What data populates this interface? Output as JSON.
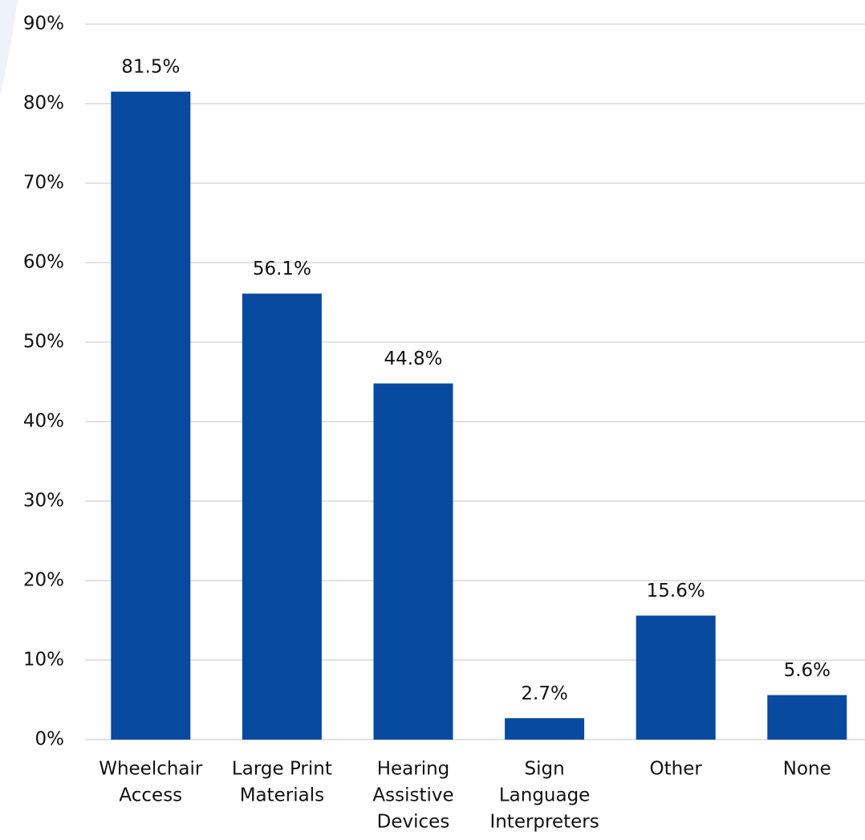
{
  "chart_data": {
    "type": "bar",
    "categories": [
      [
        "Wheelchair",
        "Access"
      ],
      [
        "Large Print",
        "Materials"
      ],
      [
        "Hearing",
        "Assistive",
        "Devices"
      ],
      [
        "Sign",
        "Language",
        "Interpreters"
      ],
      [
        "Other"
      ],
      [
        "None"
      ]
    ],
    "values": [
      81.5,
      56.1,
      44.8,
      2.7,
      15.6,
      5.6
    ],
    "value_labels": [
      "81.5%",
      "56.1%",
      "44.8%",
      "2.7%",
      "15.6%",
      "5.6%"
    ],
    "color": "#074a9f",
    "ylim": [
      0,
      90
    ],
    "yticks": [
      {
        "value": 0,
        "label": "0%"
      },
      {
        "value": 10,
        "label": "10%"
      },
      {
        "value": 20,
        "label": "20%"
      },
      {
        "value": 30,
        "label": "30%"
      },
      {
        "value": 40,
        "label": "40%"
      },
      {
        "value": 50,
        "label": "50%"
      },
      {
        "value": 60,
        "label": "60%"
      },
      {
        "value": 70,
        "label": "70%"
      },
      {
        "value": 80,
        "label": "80%"
      },
      {
        "value": 90,
        "label": "90%"
      }
    ],
    "grid": true
  }
}
